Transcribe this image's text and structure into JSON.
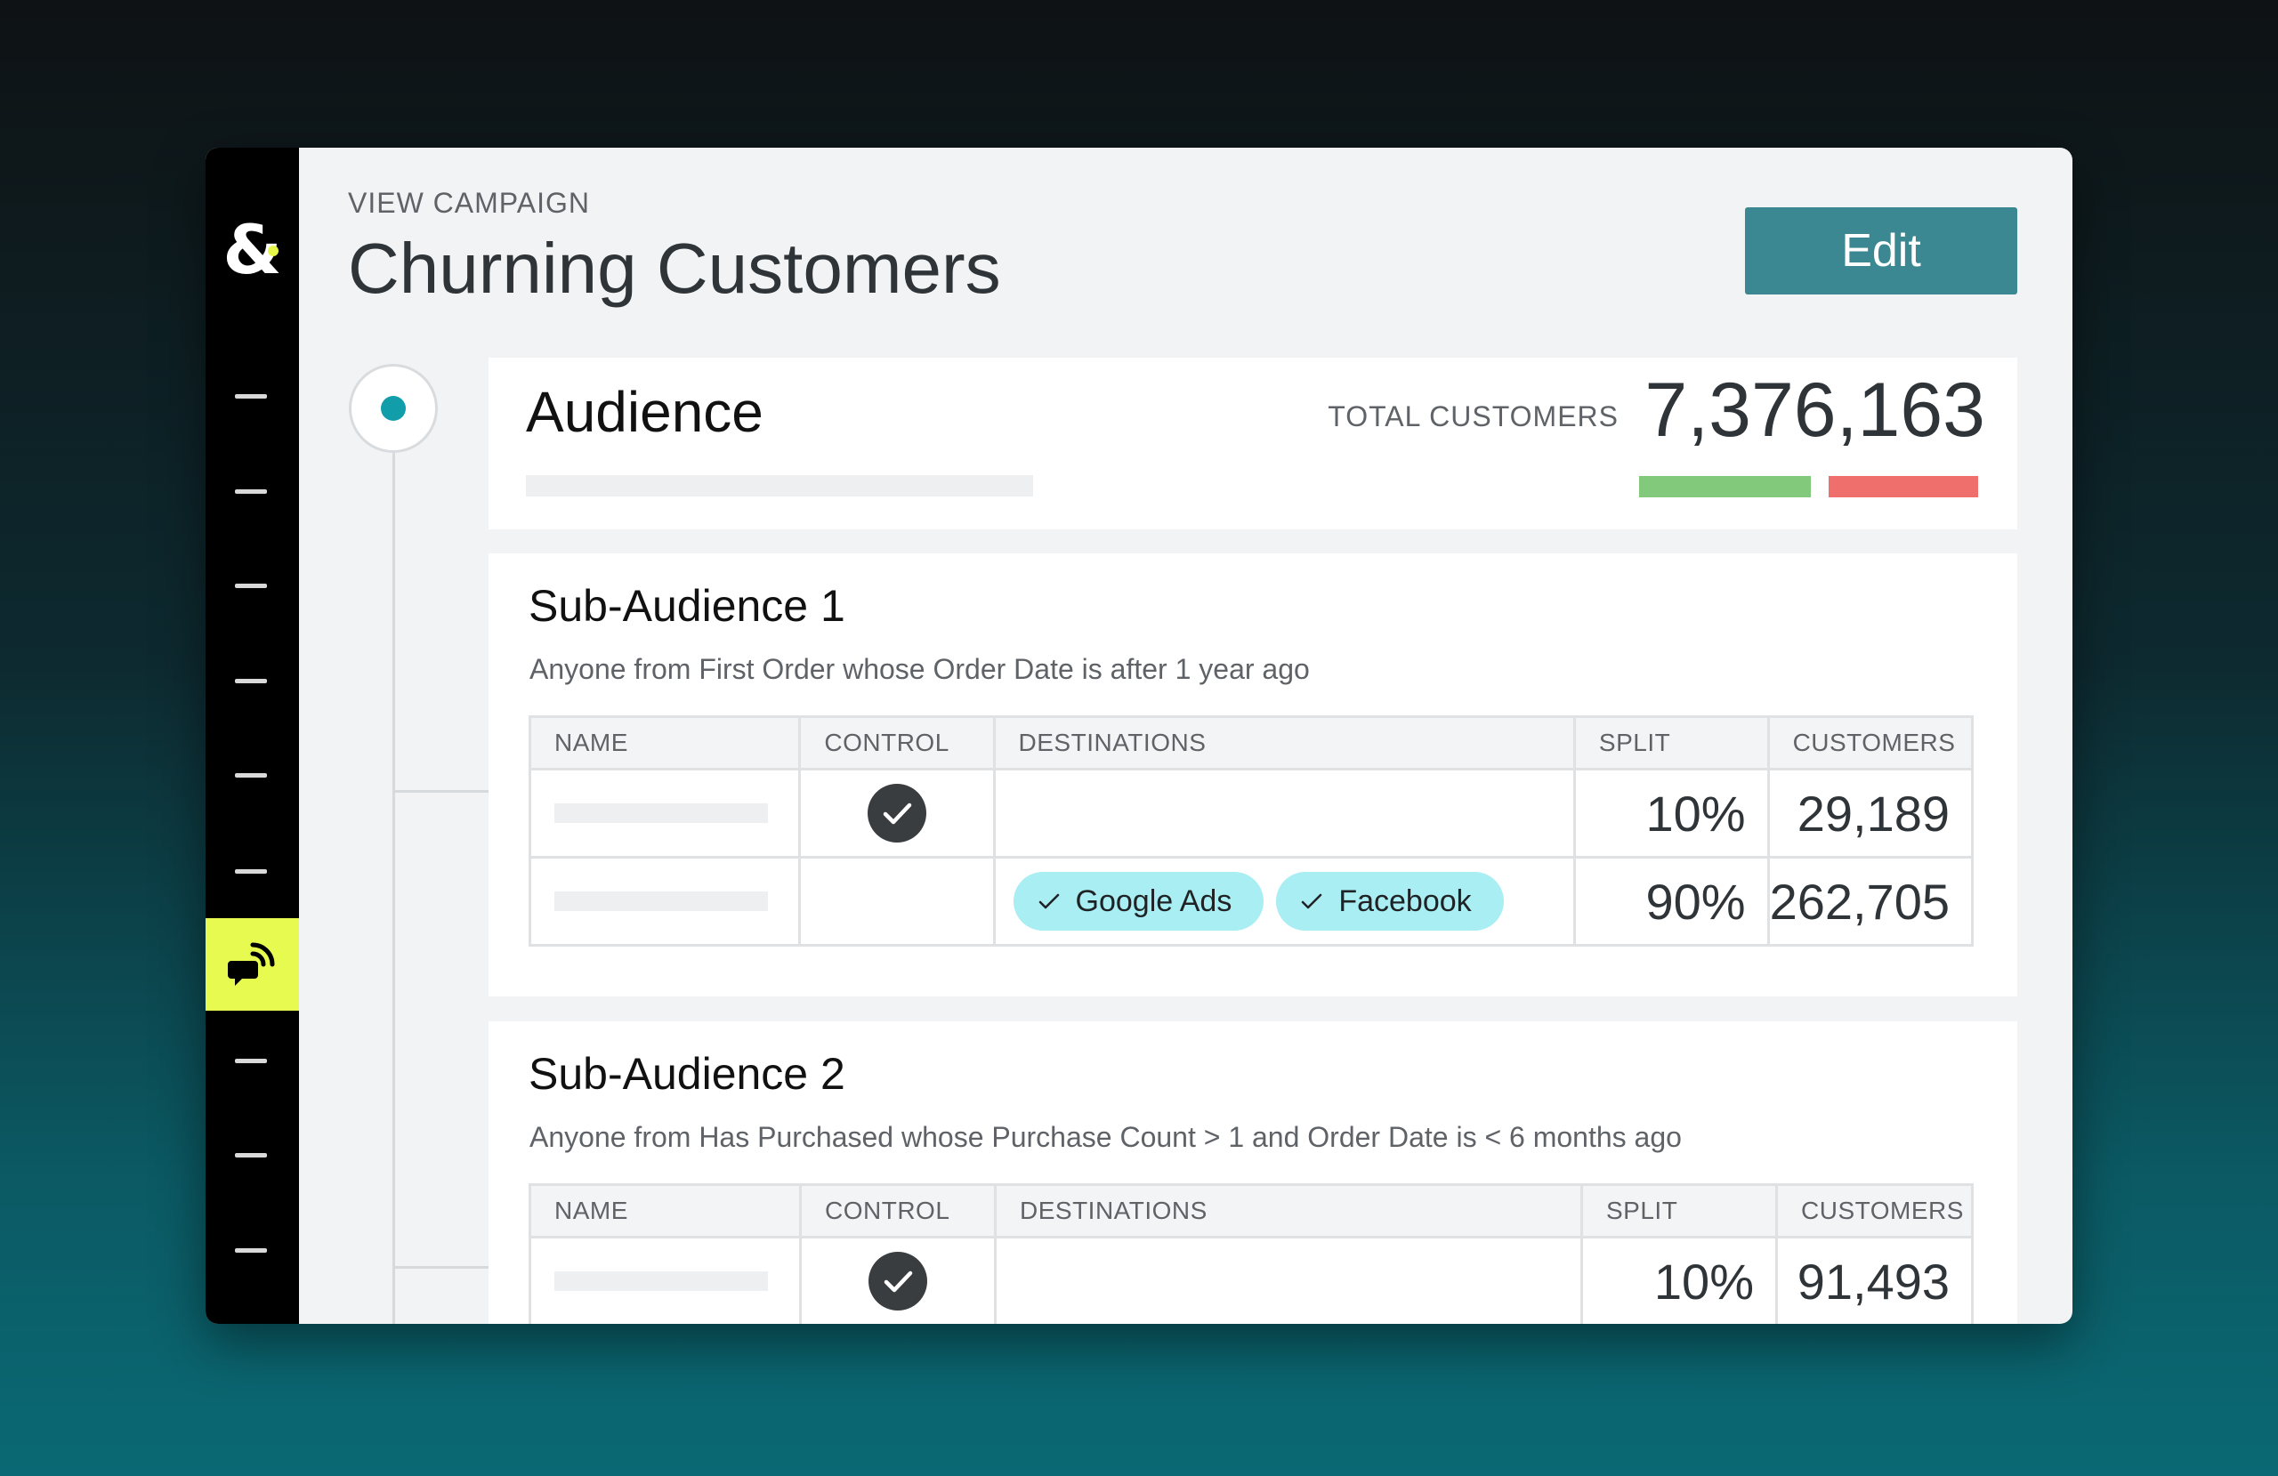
{
  "header": {
    "eyebrow": "VIEW CAMPAIGN",
    "title": "Churning Customers",
    "edit_label": "Edit"
  },
  "audience": {
    "title": "Audience",
    "total_label": "TOTAL CUSTOMERS",
    "total_value": "7,376,163"
  },
  "columns": [
    "NAME",
    "CONTROL",
    "DESTINATIONS",
    "SPLIT",
    "CUSTOMERS"
  ],
  "sub_audiences": [
    {
      "title": "Sub-Audience 1",
      "description": "Anyone from First Order whose Order Date is after 1 year ago",
      "rows": [
        {
          "control": true,
          "destinations": [],
          "split": "10%",
          "customers": "29,189"
        },
        {
          "control": false,
          "destinations": [
            "Google Ads",
            "Facebook"
          ],
          "split": "90%",
          "customers": "262,705"
        }
      ]
    },
    {
      "title": "Sub-Audience 2",
      "description": "Anyone from Has Purchased whose Purchase Count > 1 and Order Date is < 6 months ago",
      "rows": [
        {
          "control": true,
          "destinations": [],
          "split": "10%",
          "customers": "91,493"
        }
      ]
    }
  ],
  "colors": {
    "accent": "#3b8792",
    "sidebar_active": "#e7fa4f",
    "chip": "#a8eef2",
    "bar_green": "#82c97c",
    "bar_red": "#ee6f6b"
  },
  "icons": {
    "logo": "ampersand-logo",
    "active_nav": "campaign-speech-icon",
    "check": "check-icon"
  }
}
